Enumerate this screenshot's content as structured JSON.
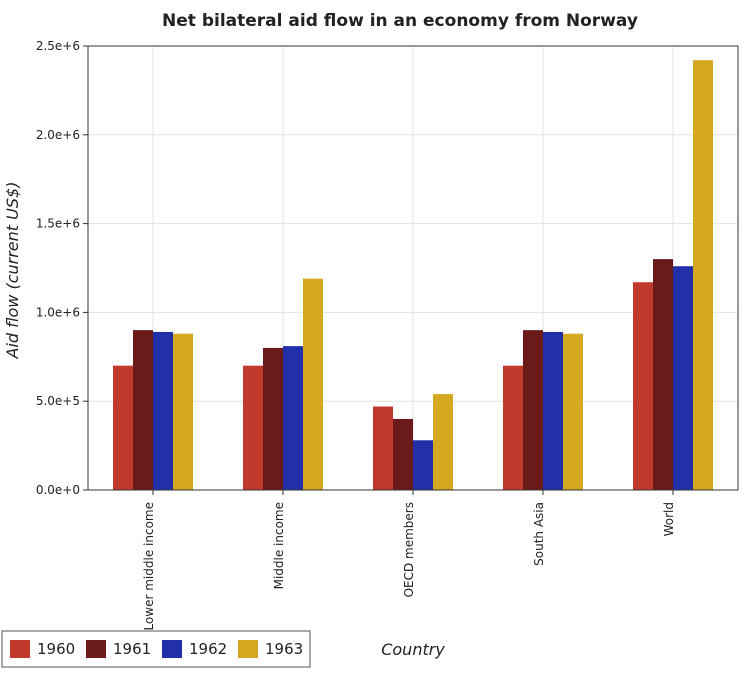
{
  "chart_data": {
    "type": "bar",
    "title": "Net bilateral aid flow in an economy from Norway",
    "xlabel": "Country",
    "ylabel": "Aid flow (current US$)",
    "categories": [
      "Lower middle income",
      "Middle income",
      "OECD members",
      "South Asia",
      "World"
    ],
    "series": [
      {
        "name": "1960",
        "color": "#c0392b",
        "values": [
          700000,
          700000,
          470000,
          700000,
          1170000
        ]
      },
      {
        "name": "1961",
        "color": "#6b1a1a",
        "values": [
          900000,
          800000,
          400000,
          900000,
          1300000
        ]
      },
      {
        "name": "1962",
        "color": "#2130a8",
        "values": [
          890000,
          810000,
          280000,
          890000,
          1260000
        ]
      },
      {
        "name": "1963",
        "color": "#d4a820",
        "values": [
          880000,
          1190000,
          540000,
          880000,
          2420000
        ]
      }
    ],
    "ylim": [
      0,
      2500000
    ],
    "yticks": [
      0,
      500000,
      1000000,
      1500000,
      2000000,
      2500000
    ],
    "ytick_labels": [
      "0.0e+0",
      "5.0e+5",
      "1.0e+6",
      "1.5e+6",
      "2.0e+6",
      "2.5e+6"
    ],
    "grid": true,
    "legend_position": "bottom-left"
  }
}
